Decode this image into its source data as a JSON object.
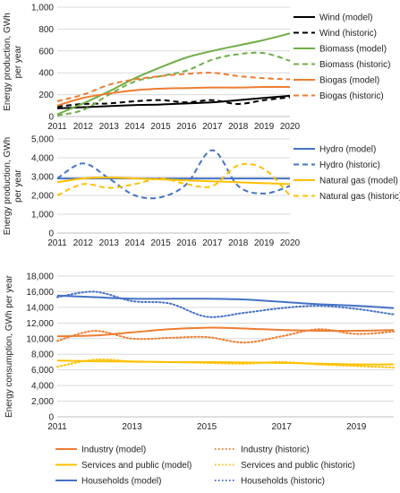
{
  "chart_data": [
    {
      "type": "line",
      "ylabel": "Energy production, GWh per year",
      "xlim": [
        2011,
        2020
      ],
      "ylim": [
        0,
        1000
      ],
      "x_ticks": [
        "2011",
        "2012",
        "2013",
        "2014",
        "2015",
        "2016",
        "2017",
        "2018",
        "2019",
        "2020"
      ],
      "y_ticks": [
        "0",
        "200",
        "400",
        "600",
        "800",
        "1,000"
      ],
      "grid": true,
      "legend_position": "right",
      "series": [
        {
          "name": "Wind (model)",
          "color": "#000000",
          "dash": "solid",
          "x": [
            2011,
            2012,
            2013,
            2014,
            2015,
            2016,
            2017,
            2018,
            2019,
            2020
          ],
          "y": [
            75,
            85,
            95,
            105,
            110,
            120,
            130,
            150,
            170,
            190
          ]
        },
        {
          "name": "Wind (historic)",
          "color": "#000000",
          "dash": "dashed",
          "x": [
            2011,
            2012,
            2013,
            2014,
            2015,
            2016,
            2017,
            2018,
            2019,
            2020
          ],
          "y": [
            90,
            115,
            120,
            140,
            150,
            130,
            150,
            115,
            150,
            175
          ]
        },
        {
          "name": "Biomass (model)",
          "color": "#70ad47",
          "dash": "solid",
          "x": [
            2011,
            2012,
            2013,
            2014,
            2015,
            2016,
            2017,
            2018,
            2019,
            2020
          ],
          "y": [
            20,
            120,
            230,
            350,
            450,
            540,
            600,
            650,
            700,
            760
          ]
        },
        {
          "name": "Biomass (historic)",
          "color": "#70ad47",
          "dash": "dashed",
          "x": [
            2011,
            2012,
            2013,
            2014,
            2015,
            2016,
            2017,
            2018,
            2019,
            2020
          ],
          "y": [
            10,
            60,
            200,
            320,
            370,
            420,
            520,
            570,
            580,
            510
          ]
        },
        {
          "name": "Biogas (model)",
          "color": "#ed7d31",
          "dash": "solid",
          "x": [
            2011,
            2012,
            2013,
            2014,
            2015,
            2016,
            2017,
            2018,
            2019,
            2020
          ],
          "y": [
            100,
            170,
            210,
            240,
            255,
            260,
            265,
            265,
            270,
            270
          ]
        },
        {
          "name": "Biogas (historic)",
          "color": "#ed7d31",
          "dash": "dashed",
          "x": [
            2011,
            2012,
            2013,
            2014,
            2015,
            2016,
            2017,
            2018,
            2019,
            2020
          ],
          "y": [
            140,
            200,
            290,
            340,
            370,
            390,
            400,
            370,
            350,
            340
          ]
        }
      ]
    },
    {
      "type": "line",
      "ylabel": "Energy production, GWh per year",
      "xlim": [
        2011,
        2020
      ],
      "ylim": [
        0,
        5000
      ],
      "x_ticks": [
        "2011",
        "2012",
        "2013",
        "2014",
        "2015",
        "2016",
        "2017",
        "2018",
        "2019",
        "2020"
      ],
      "y_ticks": [
        "0",
        "1,000",
        "2,000",
        "3,000",
        "4,000",
        "5,000"
      ],
      "grid": true,
      "legend_position": "right",
      "series": [
        {
          "name": "Hydro (model)",
          "color": "#4472c4",
          "dash": "solid",
          "x": [
            2011,
            2012,
            2013,
            2014,
            2015,
            2016,
            2017,
            2018,
            2019,
            2020
          ],
          "y": [
            2900,
            2900,
            2900,
            2900,
            2900,
            2900,
            2900,
            2900,
            2900,
            2900
          ]
        },
        {
          "name": "Hydro (historic)",
          "color": "#4472c4",
          "dash": "dashed",
          "x": [
            2011,
            2012,
            2013,
            2014,
            2015,
            2016,
            2017,
            2018,
            2019,
            2020
          ],
          "y": [
            2900,
            3700,
            2900,
            2000,
            1900,
            2600,
            4400,
            2500,
            2100,
            2500
          ]
        },
        {
          "name": "Natural gas (model)",
          "color": "#ffc000",
          "dash": "solid",
          "x": [
            2011,
            2012,
            2013,
            2014,
            2015,
            2016,
            2017,
            2018,
            2019,
            2020
          ],
          "y": [
            2700,
            2900,
            2950,
            2900,
            2850,
            2800,
            2750,
            2700,
            2650,
            2600
          ]
        },
        {
          "name": "Natural gas (historic)",
          "color": "#ffc000",
          "dash": "dashed",
          "x": [
            2011,
            2012,
            2013,
            2014,
            2015,
            2016,
            2017,
            2018,
            2019,
            2020
          ],
          "y": [
            2000,
            2600,
            2400,
            2600,
            2900,
            2600,
            2500,
            3600,
            3400,
            2000
          ]
        }
      ]
    },
    {
      "type": "line",
      "ylabel": "Energy consumption, GWh per year",
      "xlim": [
        2011,
        2020
      ],
      "ylim": [
        0,
        18000
      ],
      "x_ticks": [
        "2011",
        "2013",
        "2015",
        "2017",
        "2019"
      ],
      "y_ticks": [
        "0",
        "2,000",
        "4,000",
        "6,000",
        "8,000",
        "10,000",
        "12,000",
        "14,000",
        "16,000",
        "18,000"
      ],
      "grid": true,
      "legend_position": "bottom",
      "series": [
        {
          "name": "Industry (model)",
          "color": "#ed7d31",
          "dash": "solid",
          "x": [
            2011,
            2012,
            2013,
            2014,
            2015,
            2016,
            2017,
            2018,
            2019,
            2020
          ],
          "y": [
            10300,
            10400,
            10800,
            11200,
            11400,
            11300,
            11100,
            11000,
            11000,
            11100
          ]
        },
        {
          "name": "Industry (historic)",
          "color": "#ed7d31",
          "dash": "dotted",
          "x": [
            2011,
            2012,
            2013,
            2014,
            2015,
            2016,
            2017,
            2018,
            2019,
            2020
          ],
          "y": [
            9700,
            11000,
            10000,
            10100,
            10200,
            9500,
            10300,
            11200,
            10600,
            10900
          ]
        },
        {
          "name": "Services and public (model)",
          "color": "#ffc000",
          "dash": "solid",
          "x": [
            2011,
            2012,
            2013,
            2014,
            2015,
            2016,
            2017,
            2018,
            2019,
            2020
          ],
          "y": [
            7200,
            7100,
            7050,
            7000,
            7000,
            6950,
            6900,
            6800,
            6700,
            6700
          ]
        },
        {
          "name": "Services and public (historic)",
          "color": "#ffc000",
          "dash": "dotted",
          "x": [
            2011,
            2012,
            2013,
            2014,
            2015,
            2016,
            2017,
            2018,
            2019,
            2020
          ],
          "y": [
            6400,
            7300,
            7100,
            7000,
            6900,
            6800,
            7000,
            6700,
            6500,
            6300
          ]
        },
        {
          "name": "Households (model)",
          "color": "#4472c4",
          "dash": "solid",
          "x": [
            2011,
            2012,
            2013,
            2014,
            2015,
            2016,
            2017,
            2018,
            2019,
            2020
          ],
          "y": [
            15500,
            15300,
            15100,
            15100,
            15100,
            15000,
            14700,
            14400,
            14200,
            13900
          ]
        },
        {
          "name": "Households (historic)",
          "color": "#4472c4",
          "dash": "dotted",
          "x": [
            2011,
            2012,
            2013,
            2014,
            2015,
            2016,
            2017,
            2018,
            2019,
            2020
          ],
          "y": [
            15300,
            16000,
            14800,
            14500,
            12800,
            13300,
            13900,
            14200,
            13800,
            13100
          ]
        }
      ]
    }
  ]
}
